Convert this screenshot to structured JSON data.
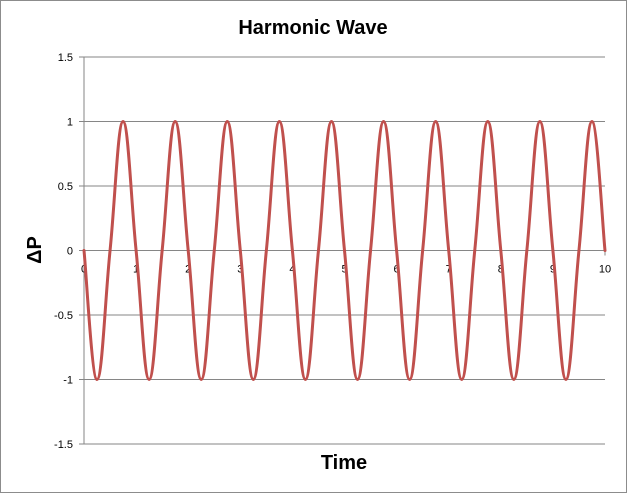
{
  "chart_data": {
    "type": "line",
    "title": "Harmonic Wave",
    "xlabel": "Time",
    "ylabel": "ΔP",
    "xlim": [
      0,
      10
    ],
    "ylim": [
      -1.5,
      1.5
    ],
    "x_ticks": [
      "0",
      "1",
      "2",
      "3",
      "4",
      "5",
      "6",
      "7",
      "8",
      "9",
      "10"
    ],
    "y_ticks": [
      "1.5",
      "1",
      "0.5",
      "0",
      "-0.5",
      "-1",
      "-1.5"
    ],
    "grid": "horizontal",
    "legend": "none",
    "series": [
      {
        "function": "-sin(2*pi*t)",
        "x": [
          0,
          0.25,
          0.5,
          0.75,
          1,
          1.25,
          1.5,
          1.75,
          2,
          2.25,
          2.5,
          2.75,
          3,
          3.25,
          3.5,
          3.75,
          4,
          4.25,
          4.5,
          4.75,
          5,
          5.25,
          5.5,
          5.75,
          6,
          6.25,
          6.5,
          6.75,
          7,
          7.25,
          7.5,
          7.75,
          8,
          8.25,
          8.5,
          8.75,
          9,
          9.25,
          9.5,
          9.75,
          10
        ],
        "values": [
          0,
          -1,
          0,
          1,
          0,
          -1,
          0,
          1,
          0,
          -1,
          0,
          1,
          0,
          -1,
          0,
          1,
          0,
          -1,
          0,
          1,
          0,
          -1,
          0,
          1,
          0,
          -1,
          0,
          1,
          0,
          -1,
          0,
          1,
          0,
          -1,
          0,
          1,
          0,
          -1,
          0,
          1,
          0
        ],
        "color": "#c0504d"
      }
    ]
  }
}
